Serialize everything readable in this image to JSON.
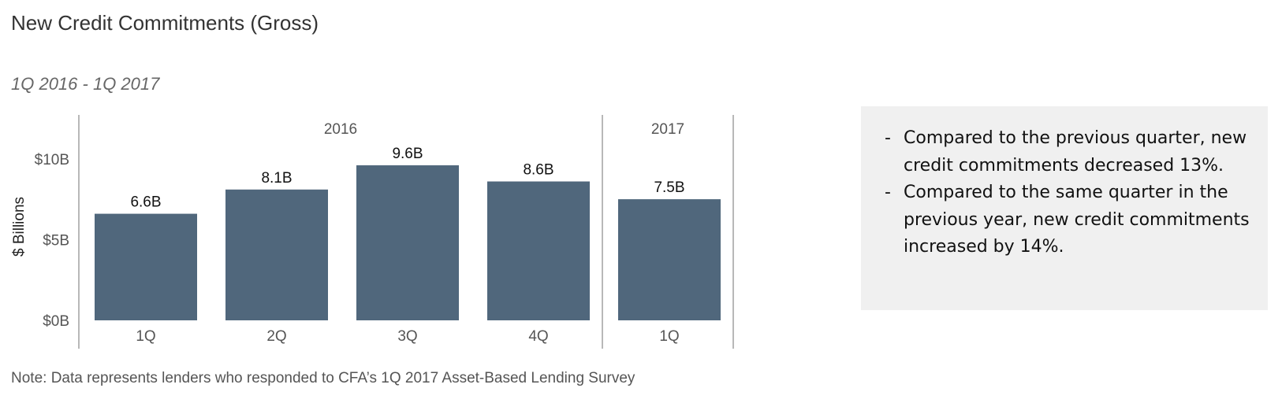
{
  "title": "New Credit Commitments (Gross)",
  "subtitle": "1Q 2016 - 1Q 2017",
  "note": "Note: Data represents lenders who responded to CFA’s 1Q 2017 Asset-Based Lending Survey",
  "commentary": [
    "Compared to the previous quarter, new credit commitments decreased 13%.",
    "Compared to the same quarter in the previous year, new credit commitments increased by 14%."
  ],
  "bullet_marker": "-",
  "colors": {
    "bar": "#50677c",
    "panel_background": "#f0f0f0",
    "divider": "#a0a0a0"
  },
  "chart_data": {
    "type": "bar",
    "year_groups": [
      {
        "label": "2016",
        "categories": [
          "1Q",
          "2Q",
          "3Q",
          "4Q"
        ]
      },
      {
        "label": "2017",
        "categories": [
          "1Q"
        ]
      }
    ],
    "categories": [
      "1Q",
      "2Q",
      "3Q",
      "4Q",
      "1Q"
    ],
    "values": [
      6.6,
      8.1,
      9.6,
      8.6,
      7.5
    ],
    "data_labels": [
      "6.6B",
      "8.1B",
      "9.6B",
      "8.6B",
      "7.5B"
    ],
    "ylabel": "$ Billions",
    "yticks": [
      0,
      5,
      10
    ],
    "ytick_labels": [
      "$0B",
      "$5B",
      "$10B"
    ],
    "ylim": [
      0,
      13.5
    ],
    "grid": false,
    "legend": "none"
  }
}
